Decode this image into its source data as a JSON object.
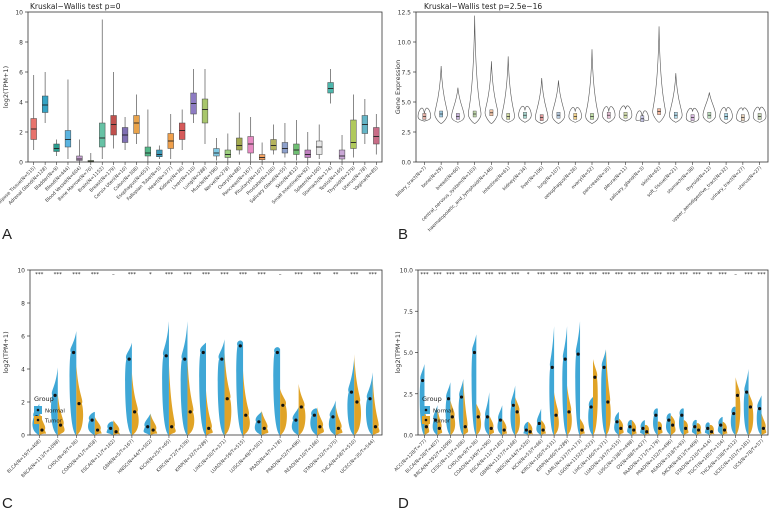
{
  "figure": {
    "labels": [
      "A",
      "B",
      "C",
      "D"
    ]
  },
  "chart_data": [
    {
      "panel": "A",
      "type": "boxplot",
      "title": "Kruskal−Wallis test p=0",
      "ylabel": "log2(TPM+1)",
      "ylim": [
        0,
        10
      ],
      "yticks": [
        0,
        2,
        4,
        6,
        8,
        10
      ],
      "categories": [
        "Adipose Tissue(N=515)",
        "Adrenal Gland(N=128)",
        "Bladder(N=9)",
        "Blood(N=444)",
        "Blood Vessel(N=604)",
        "Bone Marrow(N=70)",
        "Brain(N=1152)",
        "Breast(N=179)",
        "Cervix Uteri(N=10)",
        "Colon(N=308)",
        "Esophagus(N=653)",
        "Fallopian Tube(N=5)",
        "Heart(N=377)",
        "Kidney(N=36)",
        "Liver(N=110)",
        "Lung(N=288)",
        "Muscle(N=396)",
        "Nerve(N=278)",
        "Ovary(N=88)",
        "Pancreas(N=167)",
        "Pituitary(N=107)",
        "Prostate(N=100)",
        "Salivary Gland(N=55)",
        "Skin(N=812)",
        "Small Intestine(N=92)",
        "Spleen(N=100)",
        "Stomach(N=174)",
        "Testis(N=165)",
        "Thyroid(N=279)",
        "Uterus(N=78)",
        "Vagina(N=85)"
      ],
      "colors": [
        "#e8736c",
        "#35a3c4",
        "#2a9d8f",
        "#5ab4e0",
        "#c5a0d0",
        "#8fbf6a",
        "#66c2a5",
        "#c0504d",
        "#7f6fb3",
        "#e9a34b",
        "#52b788",
        "#3c9ab8",
        "#f0a04b",
        "#d65a5a",
        "#8e7cc3",
        "#a8c66c",
        "#7ec8e3",
        "#9ccf7e",
        "#a2a94f",
        "#e78ac3",
        "#f4a261",
        "#b5b35c",
        "#8da0cb",
        "#6fbf73",
        "#bf7fbf",
        "#e8e8e8",
        "#4db6ac",
        "#c9a7d6",
        "#b0c95c",
        "#64b5c6",
        "#c86c87"
      ],
      "medians": [
        2.2,
        3.8,
        0.9,
        1.5,
        0.2,
        0.05,
        1.6,
        2.5,
        1.8,
        2.6,
        0.6,
        0.5,
        1.4,
        2.1,
        3.9,
        3.5,
        0.6,
        0.5,
        1.1,
        1.2,
        0.3,
        1.1,
        0.9,
        0.8,
        0.5,
        1.0,
        4.9,
        0.4,
        1.3,
        2.5,
        1.7
      ],
      "q1": [
        1.5,
        3.3,
        0.7,
        1.0,
        0.1,
        0.0,
        1.0,
        1.8,
        1.3,
        1.9,
        0.4,
        0.35,
        0.9,
        1.5,
        3.2,
        2.6,
        0.4,
        0.3,
        0.8,
        0.6,
        0.15,
        0.8,
        0.6,
        0.5,
        0.3,
        0.5,
        4.6,
        0.2,
        0.9,
        1.9,
        1.2
      ],
      "q3": [
        2.9,
        4.4,
        1.2,
        2.1,
        0.4,
        0.1,
        2.6,
        3.1,
        2.3,
        3.1,
        1.0,
        0.8,
        1.9,
        2.6,
        4.6,
        4.2,
        0.9,
        0.8,
        1.6,
        1.7,
        0.5,
        1.5,
        1.3,
        1.2,
        0.8,
        1.4,
        5.3,
        0.8,
        2.8,
        3.1,
        2.3
      ],
      "min": [
        0.8,
        2.6,
        0.4,
        0.2,
        0.0,
        0.0,
        0.2,
        0.9,
        0.8,
        1.2,
        0.0,
        0.2,
        0.2,
        0.8,
        2.6,
        1.2,
        0.1,
        0.0,
        0.5,
        0.0,
        0.0,
        0.5,
        0.3,
        0.1,
        0.0,
        0.2,
        3.9,
        0.0,
        0.3,
        1.2,
        0.5
      ],
      "max": [
        5.8,
        6.0,
        1.5,
        5.5,
        1.5,
        0.6,
        9.5,
        6.0,
        3.0,
        4.5,
        3.5,
        1.1,
        3.2,
        3.5,
        6.2,
        6.2,
        1.6,
        1.9,
        3.3,
        3.0,
        1.3,
        2.5,
        2.6,
        2.8,
        2.0,
        2.5,
        6.2,
        1.8,
        4.5,
        4.2,
        3.2
      ]
    },
    {
      "panel": "B",
      "type": "violin",
      "title": "Kruskal−Wallis test p=2.5e−16",
      "ylabel": "Gene Expression",
      "ylim": [
        0,
        12.5
      ],
      "yticks": [
        0.0,
        2.5,
        5.0,
        7.5,
        10.0,
        12.5
      ],
      "categories": [
        "biliary_tract(N=7)",
        "bone(N=29)",
        "breast(N=60)",
        "central_nervous_system(N=103)",
        "haematopoietic_and_lymphoid(N=146)",
        "intestine(N=61)",
        "kidney(N=34)",
        "liver(N=106)",
        "lung(N=107)",
        "oesophagus(N=26)",
        "ovary(N=52)",
        "pancreas(N=35)",
        "pleura(N=11)",
        "salivary_gland(N=3)",
        "skin(N=62)",
        "soft_tissue(N=21)",
        "stomach(N=38)",
        "thyroid(N=12)",
        "upper_aerodigestive_tract(N=32)",
        "urinary_tract(N=27)",
        "uterus(N=27)"
      ],
      "colors": [
        "#e6b3a8",
        "#9ecae1",
        "#c6b3d9",
        "#bcd4a8",
        "#f0c4a8",
        "#cfd8a0",
        "#a8d8d0",
        "#e29a9a",
        "#b8cce0",
        "#f2d28c",
        "#c2dfa8",
        "#e7c0d6",
        "#d8e3b0",
        "#c8c8e8",
        "#f2b8a0",
        "#b0d8e8",
        "#d8b8e0",
        "#bfe0c0",
        "#a8d8e8",
        "#e8d0b8",
        "#c8d8b8"
      ],
      "medians": [
        3.8,
        4.0,
        3.8,
        4.0,
        4.1,
        3.8,
        3.9,
        3.7,
        3.9,
        3.8,
        3.8,
        3.9,
        3.9,
        3.6,
        4.2,
        3.9,
        3.7,
        3.9,
        3.8,
        3.7,
        3.8
      ],
      "min": [
        3.4,
        3.2,
        3.3,
        3.2,
        3.2,
        3.3,
        3.3,
        3.2,
        3.2,
        3.3,
        3.2,
        3.3,
        3.4,
        3.5,
        3.3,
        3.3,
        3.3,
        3.3,
        3.2,
        3.3,
        3.3
      ],
      "max": [
        4.0,
        8.0,
        6.2,
        12.2,
        8.4,
        8.8,
        4.3,
        7.0,
        6.8,
        4.2,
        9.4,
        4.2,
        4.4,
        3.7,
        11.3,
        7.4,
        4.2,
        5.8,
        4.2,
        4.3,
        4.3
      ]
    },
    {
      "panel": "C",
      "type": "split-violin",
      "ylabel": "log2(TPM+1)",
      "ylim": [
        0,
        10
      ],
      "yticks": [
        0,
        2,
        4,
        6,
        8,
        10
      ],
      "legend": {
        "title": "Group",
        "items": [
          "Normal",
          "Tumor"
        ],
        "colors": [
          "#3fa7d6",
          "#e0a326"
        ]
      },
      "categories": [
        "BLCA(N=19/T=408)",
        "BRCA(N=113/T=1098)",
        "CHOL(N=9/T=36)",
        "COAD(N=41/T=458)",
        "ESCA(N=11/T=162)",
        "GBM(N=5/T=167)",
        "HNSC(N=44/T=502)",
        "KICH(N=25/T=65)",
        "KIRC(N=72/T=539)",
        "KIRP(N=32/T=289)",
        "LIHC(N=50/T=371)",
        "LUAD(N=59/T=515)",
        "LUSC(N=49/T=501)",
        "PAAD(N=4/T=178)",
        "PRAD(N=52/T=496)",
        "READ(N=10/T=166)",
        "STAD(N=32/T=375)",
        "THCA(N=58/T=510)",
        "UCEC(N=35/T=544)"
      ],
      "significance": [
        "***",
        "***",
        "***",
        "***",
        "–",
        "***",
        "*",
        "***",
        "***",
        "***",
        "***",
        "***",
        "***",
        "–",
        "***",
        "***",
        "**",
        "***",
        "***"
      ],
      "normal_median": [
        1.1,
        2.4,
        5.0,
        0.9,
        0.4,
        4.6,
        0.5,
        4.8,
        4.6,
        5.0,
        4.6,
        5.4,
        0.8,
        5.0,
        0.9,
        1.2,
        1.1,
        2.6,
        2.2
      ],
      "tumor_median": [
        0.3,
        0.6,
        1.9,
        0.3,
        0.2,
        1.4,
        0.3,
        0.5,
        1.4,
        0.4,
        2.2,
        1.2,
        0.4,
        1.8,
        1.7,
        0.5,
        0.4,
        2.0,
        0.5
      ],
      "normal_max": [
        1.9,
        4.1,
        6.3,
        1.4,
        0.8,
        5.6,
        1.3,
        6.9,
        6.9,
        5.6,
        5.8,
        5.6,
        1.4,
        5.2,
        1.7,
        1.6,
        2.1,
        4.7,
        3.8
      ],
      "tumor_max": [
        1.5,
        2.5,
        4.3,
        1.1,
        0.9,
        3.8,
        1.3,
        4.3,
        4.6,
        2.7,
        5.0,
        3.9,
        1.5,
        2.8,
        3.1,
        1.7,
        1.8,
        4.9,
        3.4
      ]
    },
    {
      "panel": "D",
      "type": "split-violin",
      "ylabel": "log2(TPM+1)",
      "ylim": [
        0,
        10
      ],
      "yticks": [
        0.0,
        2.5,
        5.0,
        7.5,
        10.0
      ],
      "legend": {
        "title": "Group",
        "items": [
          "Normal",
          "Tumor"
        ],
        "colors": [
          "#3fa7d6",
          "#e0a326"
        ]
      },
      "categories": [
        "ACC(N=128/T=77)",
        "BLCA(N=28/T=407)",
        "BRCA(N=292/T=1099)",
        "CESC(N=13/T=306)",
        "CHOL(N=9/T=36)",
        "COAD(N=349/T=290)",
        "ESCA(N=11/T=182)",
        "GBM(N=1157/T=168)",
        "HNSC(N=44/T=520)",
        "KICH(N=53/T=66)",
        "KIRC(N=100/T=531)",
        "KIRP(N=60/T=289)",
        "LAML(N=337/T=173)",
        "LGG(N=1152/T=523)",
        "LIHC(N=160/T=371)",
        "LUAD(N=347/T=515)",
        "LUSC(N=338/T=498)",
        "OV(N=88/T=427)",
        "PAAD(N=171/T=179)",
        "PRAD(N=152/T=496)",
        "READ(N=318/T=93)",
        "SKCM(N=813/T=469)",
        "STAD(N=210/T=414)",
        "TGCT(N=165/T=154)",
        "THCA(N=338/T=512)",
        "UCEC(N=101/T=181)",
        "UCS(N=78/T=57)"
      ],
      "significance": [
        "***",
        "***",
        "***",
        "***",
        "***",
        "***",
        "***",
        "***",
        "*",
        "***",
        "***",
        "***",
        "***",
        "***",
        "***",
        "***",
        "***",
        "***",
        "***",
        "***",
        "***",
        "***",
        "**",
        "***",
        "–",
        "***",
        "***"
      ],
      "normal_median": [
        3.3,
        0.9,
        2.2,
        2.3,
        5.0,
        1.1,
        0.9,
        1.8,
        0.3,
        0.7,
        4.1,
        4.6,
        4.9,
        1.7,
        4.1,
        0.8,
        0.5,
        0.4,
        1.2,
        0.9,
        1.2,
        0.5,
        0.4,
        0.6,
        1.3,
        2.6,
        1.6
      ],
      "tumor_median": [
        0.5,
        0.4,
        1.1,
        0.5,
        1.1,
        0.4,
        0.3,
        1.4,
        0.2,
        0.3,
        1.2,
        1.4,
        0.3,
        3.5,
        2.0,
        0.4,
        0.3,
        0.2,
        0.4,
        0.6,
        0.4,
        0.3,
        0.2,
        0.3,
        2.4,
        1.7,
        0.4
      ],
      "normal_max": [
        4.3,
        1.8,
        3.2,
        3.4,
        6.1,
        2.6,
        1.8,
        3.0,
        0.8,
        1.6,
        6.6,
        6.6,
        6.9,
        2.3,
        5.2,
        1.4,
        0.9,
        0.9,
        1.6,
        1.3,
        1.6,
        0.9,
        0.7,
        1.1,
        1.7,
        4.0,
        2.4
      ],
      "tumor_max": [
        1.5,
        1.6,
        2.1,
        3.3,
        1.9,
        1.2,
        1.0,
        2.3,
        0.8,
        0.9,
        2.6,
        3.0,
        1.0,
        4.6,
        5.2,
        1.0,
        0.9,
        0.6,
        0.8,
        1.2,
        0.9,
        0.7,
        0.6,
        0.8,
        3.5,
        2.6,
        1.3
      ]
    }
  ]
}
